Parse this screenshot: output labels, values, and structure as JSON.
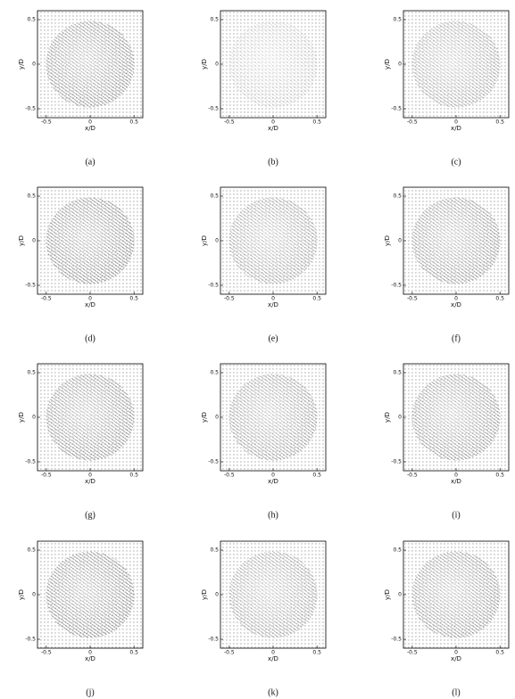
{
  "chart_data": [
    {
      "type": "quiver",
      "x_label": "x/D",
      "y_label": "y/D",
      "caption": "(a)",
      "xlim": [
        -0.6,
        0.6
      ],
      "ylim": [
        -0.6,
        0.6
      ],
      "xticks": [
        -0.5,
        0,
        0.5
      ],
      "yticks": [
        -0.5,
        0,
        0.5
      ]
    },
    {
      "type": "quiver",
      "x_label": "x/D",
      "y_label": "y/D",
      "caption": "(b)",
      "xlim": [
        -0.6,
        0.6
      ],
      "ylim": [
        -0.6,
        0.6
      ],
      "xticks": [
        -0.5,
        0,
        0.5
      ],
      "yticks": [
        -0.5,
        0,
        0.5
      ]
    },
    {
      "type": "quiver",
      "x_label": "x/D",
      "y_label": "y/D",
      "caption": "(c)",
      "xlim": [
        -0.6,
        0.6
      ],
      "ylim": [
        -0.6,
        0.6
      ],
      "xticks": [
        -0.5,
        0,
        0.5
      ],
      "yticks": [
        -0.5,
        0,
        0.5
      ]
    },
    {
      "type": "quiver",
      "x_label": "x/D",
      "y_label": "y/D",
      "caption": "(d)",
      "xlim": [
        -0.6,
        0.6
      ],
      "ylim": [
        -0.6,
        0.6
      ],
      "xticks": [
        -0.5,
        0,
        0.5
      ],
      "yticks": [
        -0.5,
        0,
        0.5
      ]
    },
    {
      "type": "quiver",
      "x_label": "x/D",
      "y_label": "y/D",
      "caption": "(e)",
      "xlim": [
        -0.6,
        0.6
      ],
      "ylim": [
        -0.6,
        0.6
      ],
      "xticks": [
        -0.5,
        0,
        0.5
      ],
      "yticks": [
        -0.5,
        0,
        0.5
      ]
    },
    {
      "type": "quiver",
      "x_label": "x/D",
      "y_label": "y/D",
      "caption": "(f)",
      "xlim": [
        -0.6,
        0.6
      ],
      "ylim": [
        -0.6,
        0.6
      ],
      "xticks": [
        -0.5,
        0,
        0.5
      ],
      "yticks": [
        -0.5,
        0,
        0.5
      ]
    },
    {
      "type": "quiver",
      "x_label": "x/D",
      "y_label": "y/D",
      "caption": "(g)",
      "xlim": [
        -0.6,
        0.6
      ],
      "ylim": [
        -0.6,
        0.6
      ],
      "xticks": [
        -0.5,
        0,
        0.5
      ],
      "yticks": [
        -0.5,
        0,
        0.5
      ]
    },
    {
      "type": "quiver",
      "x_label": "x/D",
      "y_label": "y/D",
      "caption": "(h)",
      "xlim": [
        -0.6,
        0.6
      ],
      "ylim": [
        -0.6,
        0.6
      ],
      "xticks": [
        -0.5,
        0,
        0.5
      ],
      "yticks": [
        -0.5,
        0,
        0.5
      ]
    },
    {
      "type": "quiver",
      "x_label": "x/D",
      "y_label": "y/D",
      "caption": "(i)",
      "xlim": [
        -0.6,
        0.6
      ],
      "ylim": [
        -0.6,
        0.6
      ],
      "xticks": [
        -0.5,
        0,
        0.5
      ],
      "yticks": [
        -0.5,
        0,
        0.5
      ]
    },
    {
      "type": "quiver",
      "x_label": "x/D",
      "y_label": "y/D",
      "caption": "(j)",
      "xlim": [
        -0.6,
        0.6
      ],
      "ylim": [
        -0.6,
        0.6
      ],
      "xticks": [
        -0.5,
        0,
        0.5
      ],
      "yticks": [
        -0.5,
        0,
        0.5
      ]
    },
    {
      "type": "quiver",
      "x_label": "x/D",
      "y_label": "y/D",
      "caption": "(k)",
      "xlim": [
        -0.6,
        0.6
      ],
      "ylim": [
        -0.6,
        0.6
      ],
      "xticks": [
        -0.5,
        0,
        0.5
      ],
      "yticks": [
        -0.5,
        0,
        0.5
      ]
    },
    {
      "type": "quiver",
      "x_label": "x/D",
      "y_label": "y/D",
      "caption": "(l)",
      "xlim": [
        -0.6,
        0.6
      ],
      "ylim": [
        -0.6,
        0.6
      ],
      "xticks": [
        -0.5,
        0,
        0.5
      ],
      "yticks": [
        -0.5,
        0,
        0.5
      ]
    }
  ]
}
